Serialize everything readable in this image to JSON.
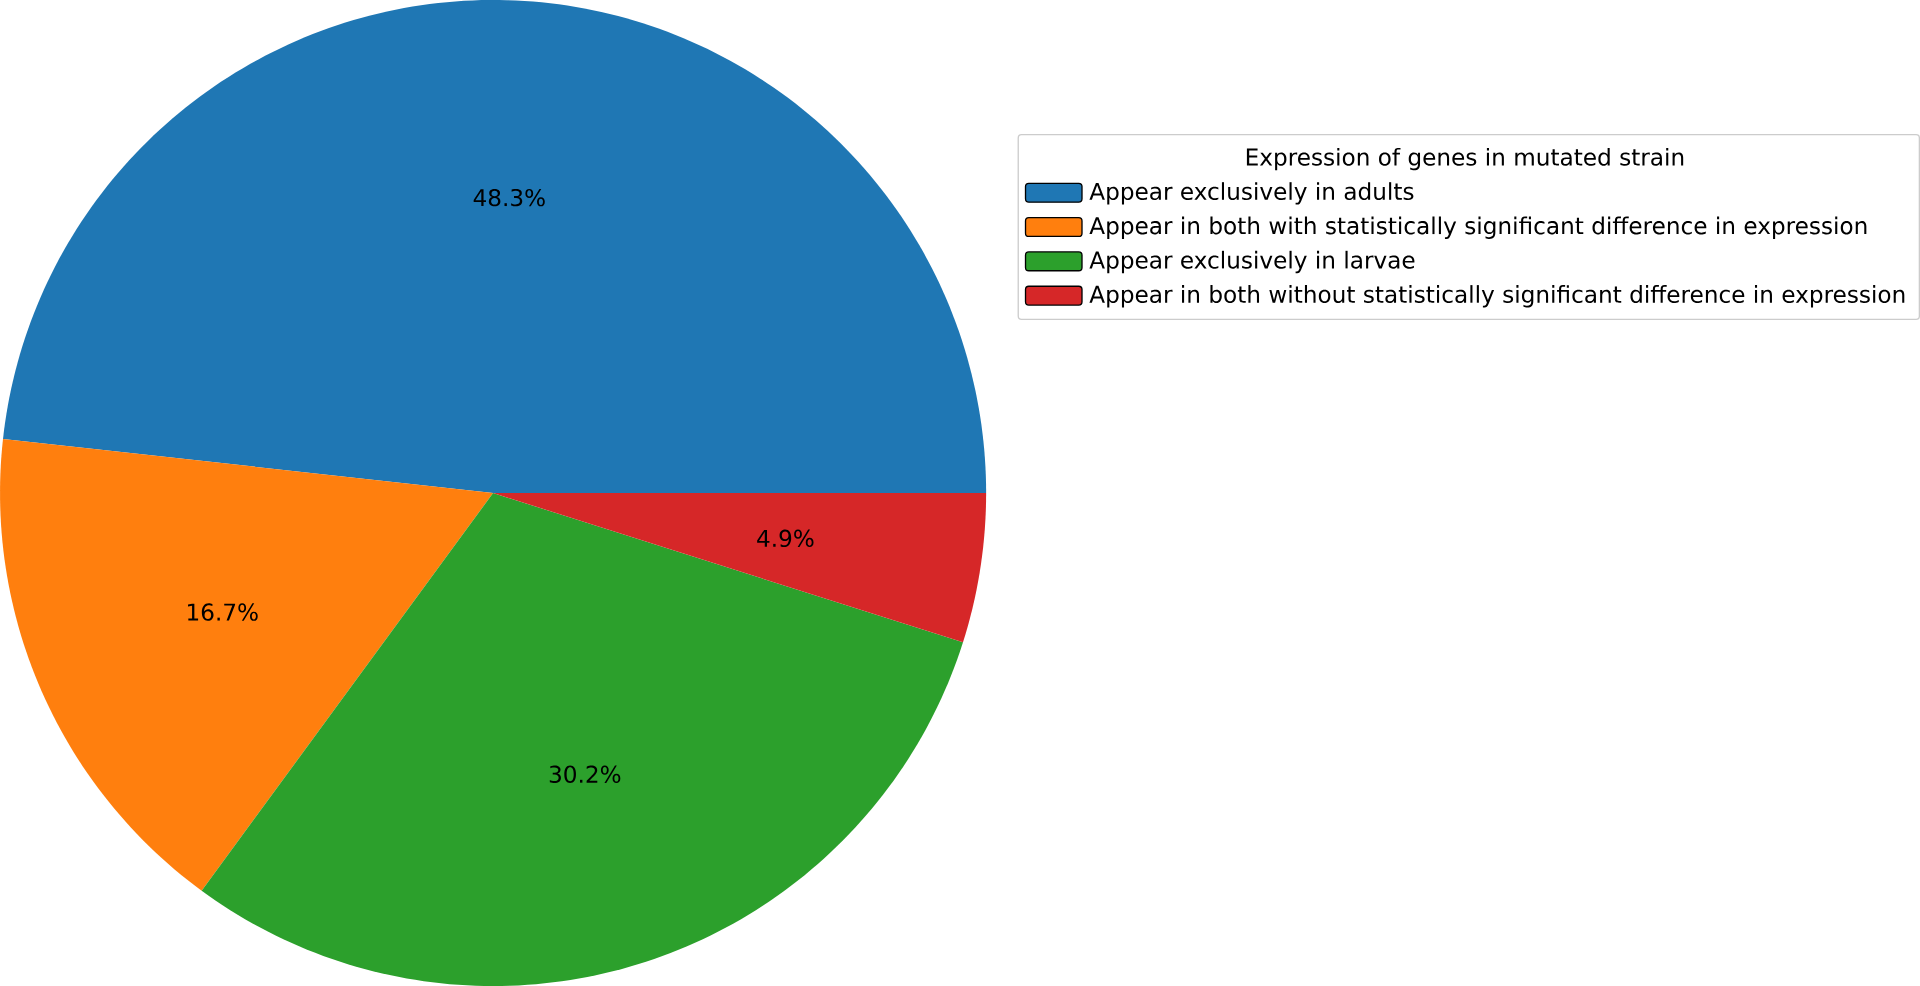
{
  "chart_data": {
    "type": "pie",
    "legend_title": "Expression of genes in mutated strain",
    "categories": [
      "Appear exclusively in adults",
      "Appear in both with statistically significant difference in expression",
      "Appear exclusively in larvae",
      "Appear in both without statistically significant difference in expression"
    ],
    "values": [
      48.3,
      16.7,
      30.2,
      4.9
    ],
    "colors": [
      "#1f77b4",
      "#ff7f0e",
      "#2ca02c",
      "#d62728"
    ],
    "value_labels": [
      "48.3%",
      "16.7%",
      "30.2%",
      "4.9%"
    ],
    "legend": "right"
  }
}
